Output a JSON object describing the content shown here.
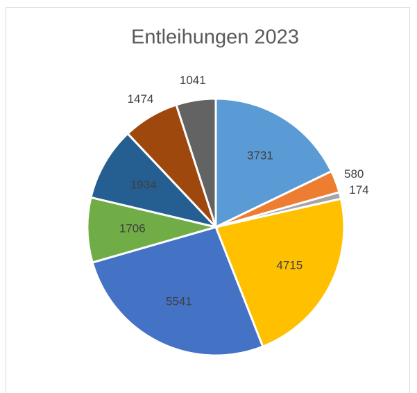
{
  "chart_data": {
    "type": "pie",
    "title": "Entleihungen 2023",
    "values": [
      3731,
      580,
      174,
      4715,
      5541,
      1706,
      1934,
      1474,
      1041
    ],
    "colors": [
      "#5b9bd5",
      "#ed7d31",
      "#a5a5a5",
      "#ffc000",
      "#4472c4",
      "#70ad47",
      "#255e91",
      "#9e480e",
      "#636363"
    ]
  }
}
